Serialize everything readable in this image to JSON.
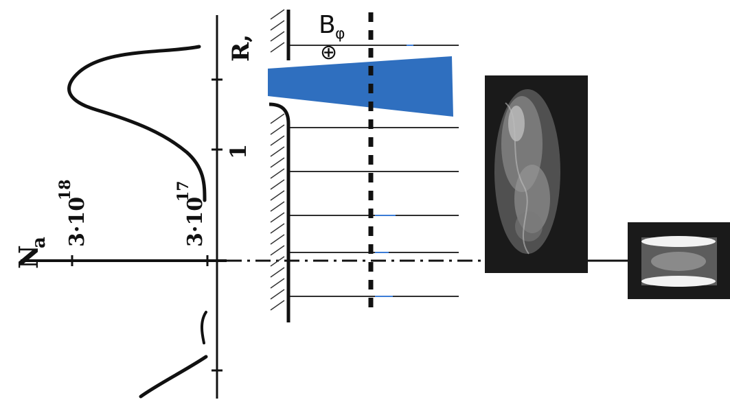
{
  "labels": {
    "na_axis": "N",
    "na_sub": "a",
    "na_high_base": "3·10",
    "na_high_exp": "18",
    "na_low_base": "3·10",
    "na_low_exp": "17",
    "r_axis": "R,",
    "r_one": "1",
    "b_field": "B",
    "b_sub": "φ",
    "b_direction_symbol": "⊕"
  },
  "colors": {
    "ink": "#111111",
    "jet_fill": "#2f6fbf",
    "image_background": "#1a1a1a"
  }
}
